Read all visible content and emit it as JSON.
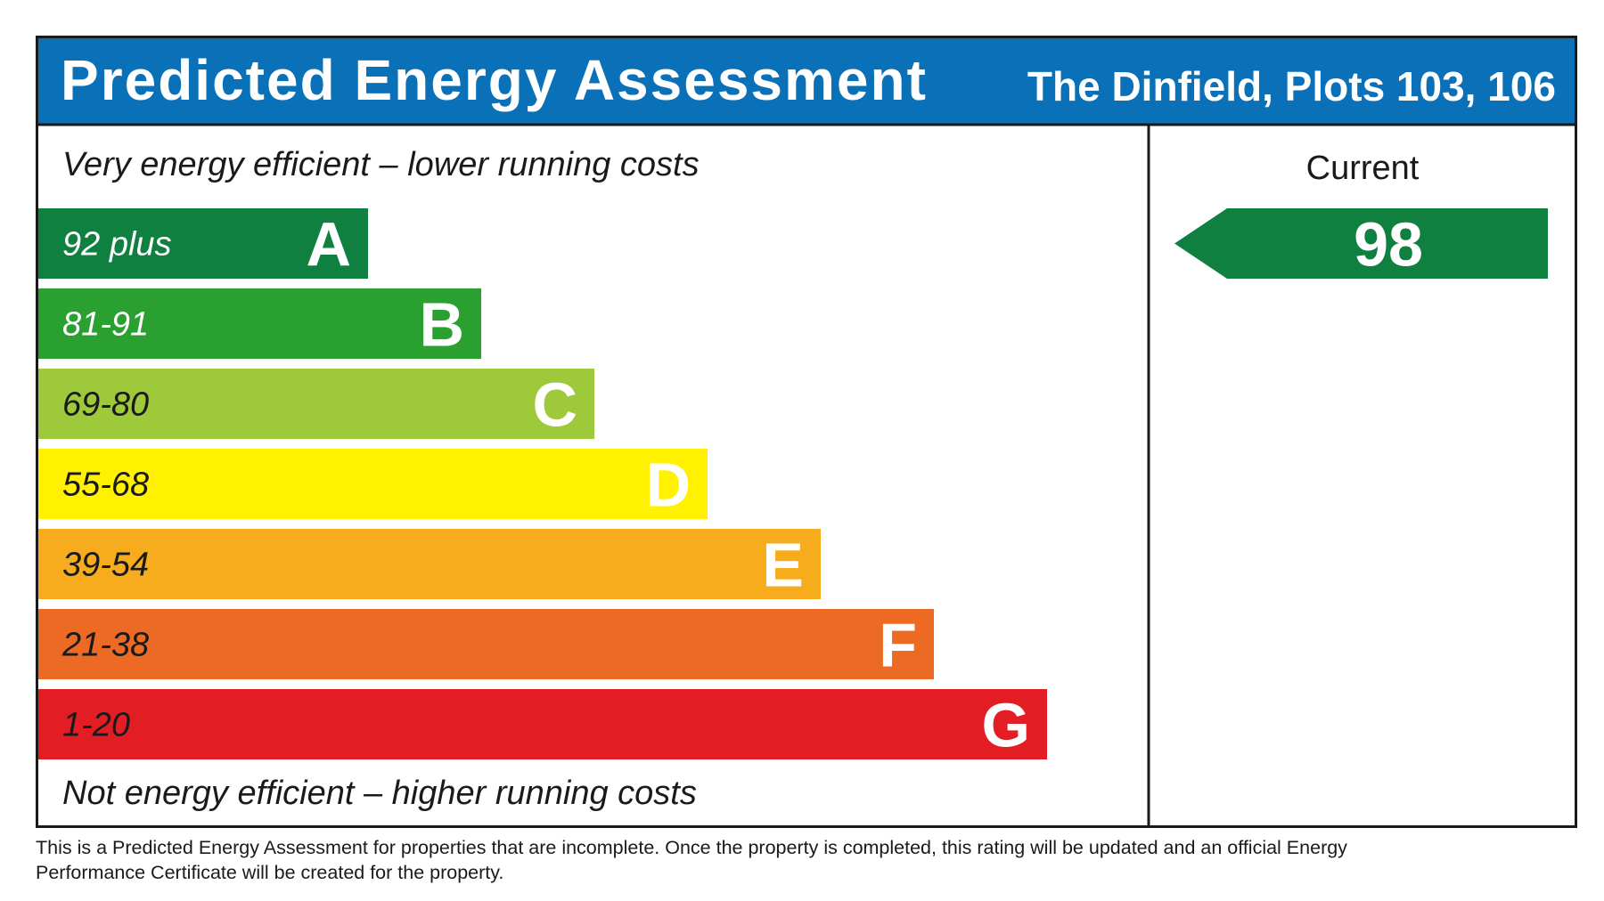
{
  "header": {
    "title": "Predicted Energy Assessment",
    "property": "The Dinfield, Plots 103, 106",
    "background_color": "#0a70b8"
  },
  "chart_data": {
    "type": "bar",
    "top_note": "Very energy efficient – lower running costs",
    "bottom_note": "Not energy efficient – higher running costs",
    "bands": [
      {
        "letter": "A",
        "range": "92 plus",
        "min": 92,
        "max": null,
        "color": "#0f8040",
        "range_text_color": "#ffffff"
      },
      {
        "letter": "B",
        "range": "81-91",
        "min": 81,
        "max": 91,
        "color": "#2aa031",
        "range_text_color": "#ffffff"
      },
      {
        "letter": "C",
        "range": "69-80",
        "min": 69,
        "max": 80,
        "color": "#9dc93a",
        "range_text_color": "#1a1a1a"
      },
      {
        "letter": "D",
        "range": "55-68",
        "min": 55,
        "max": 68,
        "color": "#fff100",
        "range_text_color": "#1a1a1a"
      },
      {
        "letter": "E",
        "range": "39-54",
        "min": 39,
        "max": 54,
        "color": "#f7ac1d",
        "range_text_color": "#1a1a1a"
      },
      {
        "letter": "F",
        "range": "21-38",
        "min": 21,
        "max": 38,
        "color": "#ec6a23",
        "range_text_color": "#1a1a1a"
      },
      {
        "letter": "G",
        "range": "1-20",
        "min": 1,
        "max": 20,
        "color": "#e31d24",
        "range_text_color": "#1a1a1a"
      }
    ],
    "columns": [
      {
        "label": "Current",
        "value": 98,
        "band": "A",
        "color": "#0f8040"
      }
    ]
  },
  "footer": {
    "disclaimer": "This is a Predicted Energy Assessment for properties that are incomplete. Once the property is completed, this rating will be updated and an official Energy Performance Certificate will be created for the property."
  }
}
